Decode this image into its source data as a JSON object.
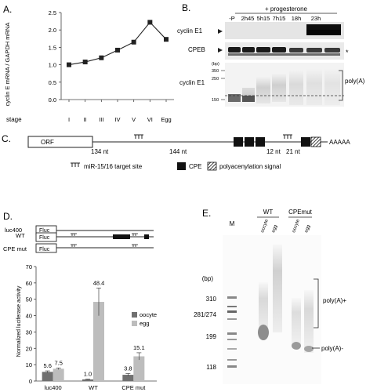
{
  "panels": {
    "A": {
      "letter": "A.",
      "ylabel": "cyclin E mRNA / GAPDH mRNA",
      "stage_label": "stage",
      "chart_data": {
        "type": "line",
        "categories": [
          "I",
          "II",
          "III",
          "IV",
          "V",
          "VI",
          "Egg"
        ],
        "values": [
          1.0,
          1.08,
          1.2,
          1.42,
          1.65,
          2.22,
          1.73
        ],
        "yticks": [
          "0.0",
          "0.5",
          "1.0",
          "1.5",
          "2.0",
          "2.5"
        ],
        "ylim": [
          0,
          2.5
        ],
        "color": "#222222"
      }
    },
    "B": {
      "letter": "B.",
      "treatment": "+ progesterone",
      "lanes": [
        "-P",
        "2h45",
        "5h15",
        "7h15",
        "18h",
        "23h"
      ],
      "row_labels": [
        "cyclin E1",
        "CPEB",
        "cyclin E1"
      ],
      "bp_label": "(bp)",
      "bp_ticks": [
        "350",
        "250",
        "150"
      ],
      "asterisk": "*",
      "polyA_label": "poly(A)"
    },
    "C": {
      "letter": "C.",
      "orf_label": "ORF",
      "spacers": [
        "134 nt",
        "144 nt",
        "12 nt",
        "21 nt"
      ],
      "tail": "AAAAA",
      "legend": {
        "mirna": "miR-15/16 target site",
        "cpe": "CPE",
        "pas": "polyacenylation signal"
      }
    },
    "D": {
      "letter": "D.",
      "constructs": [
        "luc400",
        "WT",
        "CPE mut"
      ],
      "fluc_label": "Fluc",
      "chart_data": {
        "type": "bar",
        "categories": [
          "luc400",
          "WT",
          "CPE mut"
        ],
        "series": [
          {
            "name": "oocyte",
            "values": [
              5.6,
              1.0,
              3.8
            ],
            "errors": [
              0.6,
              0.2,
              0.8
            ],
            "color": "#707070"
          },
          {
            "name": "egg",
            "values": [
              7.5,
              48.4,
              15.1
            ],
            "errors": [
              0.5,
              8.5,
              2.2
            ],
            "color": "#bdbdbd"
          }
        ],
        "ylabel": "Normalized luciferase activity",
        "yticks": [
          "0",
          "10",
          "20",
          "30",
          "40",
          "50",
          "60",
          "70"
        ],
        "ylim": [
          0,
          70
        ]
      }
    },
    "E": {
      "letter": "E.",
      "marker_lane": "M",
      "groups": [
        {
          "label": "WT",
          "lanes": [
            "oocyte",
            "egg"
          ]
        },
        {
          "label": "CPEmut",
          "lanes": [
            "oocyte",
            "egg"
          ]
        }
      ],
      "bp_label": "(bp)",
      "bp_ticks": [
        "310",
        "281/274",
        "199",
        "118"
      ],
      "plus_label": "poly(A)+",
      "minus_label": "poly(A)-"
    }
  }
}
